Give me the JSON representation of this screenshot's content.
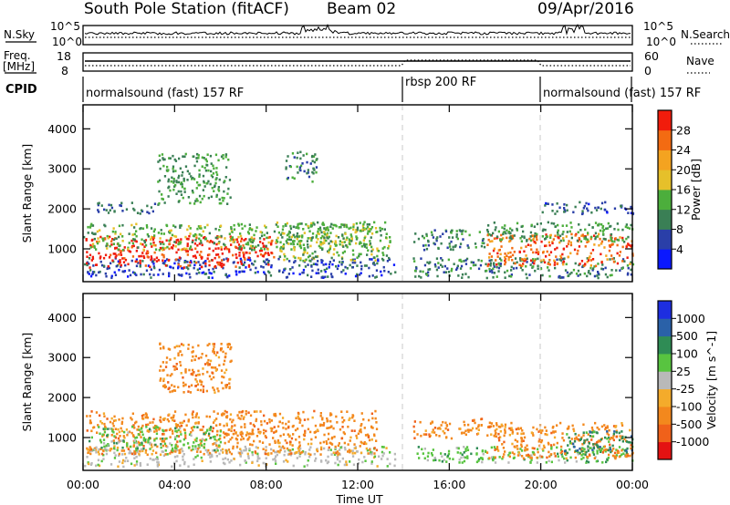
{
  "header": {
    "station": "South Pole Station (fitACF)",
    "beam": "Beam 02",
    "date": "09/Apr/2016"
  },
  "strips": {
    "nsky_label": "N.Sky",
    "nsearch_label": "N.Search",
    "nsky_ticks": [
      "10^5",
      "10^0"
    ],
    "nsearch_ticks": [
      "10^5",
      "10^0"
    ],
    "freq_label_line1": "Freq.",
    "freq_label_line2": "[MHz]",
    "freq_ticks": [
      "18",
      "8"
    ],
    "nave_label": "Nave",
    "nave_ticks": [
      "60",
      "0"
    ],
    "cpid_label": "CPID"
  },
  "cpid_modes": [
    {
      "label": "normalsound (fast) 157 RF",
      "start_h": 0,
      "end_h": 14
    },
    {
      "label": "rbsp 200 RF",
      "start_h": 14,
      "end_h": 20
    },
    {
      "label": "normalsound (fast) 157 RF",
      "start_h": 20,
      "end_h": 24
    }
  ],
  "colors": {
    "power": [
      "#0a18ff",
      "#2a3fa8",
      "#3a7f55",
      "#4cae3c",
      "#e6c02a",
      "#f4a320",
      "#f36b12",
      "#f11c0c"
    ],
    "velocity": [
      "#e41212",
      "#f0611a",
      "#f3881d",
      "#f4ab2b",
      "#b9b9b9",
      "#58c440",
      "#2f8c55",
      "#2a61a8",
      "#1d2ee0"
    ]
  },
  "power_colorbar": {
    "label": "Power [dB]",
    "ticks": [
      "4",
      "8",
      "12",
      "16",
      "20",
      "24",
      "28"
    ]
  },
  "velocity_colorbar": {
    "label": "Velocity [m s^-1]",
    "ticks": [
      "-1000",
      "-500",
      "-100",
      "-25",
      "25",
      "100",
      "500",
      "1000"
    ]
  },
  "chart_data": [
    {
      "type": "heatmap",
      "panel": "power",
      "ylabel": "Slant Range [km]",
      "xlim": [
        "00:00",
        "00:00"
      ],
      "ylim": [
        180,
        4600
      ],
      "yticks": [
        "1000",
        "2000",
        "3000",
        "4000"
      ],
      "regions": [
        {
          "t0": 0.0,
          "t1": 13.6,
          "r0": 300,
          "r1": 800,
          "value_db": 6
        },
        {
          "t0": 0.1,
          "t1": 8.4,
          "r0": 560,
          "r1": 1350,
          "value_db": 30
        },
        {
          "t0": 0.0,
          "t1": 12.6,
          "r0": 1000,
          "r1": 1650,
          "value_db": 14
        },
        {
          "t0": 8.4,
          "t1": 13.4,
          "r0": 700,
          "r1": 1700,
          "value_db": 14
        },
        {
          "t0": 0.6,
          "t1": 3.3,
          "r0": 1900,
          "r1": 2180,
          "value_db": 8
        },
        {
          "t0": 3.2,
          "t1": 6.4,
          "r0": 2150,
          "r1": 3400,
          "value_db": 12
        },
        {
          "t0": 8.8,
          "t1": 10.2,
          "r0": 2700,
          "r1": 3450,
          "value_db": 10
        },
        {
          "t0": 14.4,
          "t1": 17.5,
          "r0": 1000,
          "r1": 1500,
          "value_db": 10
        },
        {
          "t0": 14.4,
          "t1": 24.0,
          "r0": 300,
          "r1": 800,
          "value_db": 10
        },
        {
          "t0": 17.6,
          "t1": 24.0,
          "r0": 600,
          "r1": 1400,
          "value_db": 26
        },
        {
          "t0": 17.6,
          "t1": 24.0,
          "r0": 1200,
          "r1": 1700,
          "value_db": 12
        },
        {
          "t0": 20.0,
          "t1": 24.0,
          "r0": 1900,
          "r1": 2200,
          "value_db": 6
        }
      ]
    },
    {
      "type": "heatmap",
      "panel": "velocity",
      "ylabel": "Slant Range [km]",
      "xlabel": "Time UT",
      "xticks": [
        "00:00",
        "04:00",
        "08:00",
        "12:00",
        "16:00",
        "20:00",
        "00:00"
      ],
      "ylim": [
        180,
        4600
      ],
      "yticks": [
        "1000",
        "2000",
        "3000",
        "4000"
      ],
      "regions": [
        {
          "t0": 0.0,
          "t1": 13.6,
          "r0": 300,
          "r1": 800,
          "value_ms": 0
        },
        {
          "t0": 0.1,
          "t1": 12.8,
          "r0": 600,
          "r1": 1700,
          "value_ms": -100
        },
        {
          "t0": 0.2,
          "t1": 6.0,
          "r0": 700,
          "r1": 1300,
          "value_ms": 100
        },
        {
          "t0": 3.3,
          "t1": 6.5,
          "r0": 2150,
          "r1": 3400,
          "value_ms": -100
        },
        {
          "t0": 14.4,
          "t1": 17.5,
          "r0": 1000,
          "r1": 1500,
          "value_ms": -100
        },
        {
          "t0": 14.4,
          "t1": 24.0,
          "r0": 400,
          "r1": 800,
          "value_ms": 100
        },
        {
          "t0": 17.6,
          "t1": 24.0,
          "r0": 500,
          "r1": 1400,
          "value_ms": -100
        },
        {
          "t0": 21.0,
          "t1": 24.0,
          "r0": 600,
          "r1": 1200,
          "value_ms": 500
        }
      ]
    }
  ]
}
